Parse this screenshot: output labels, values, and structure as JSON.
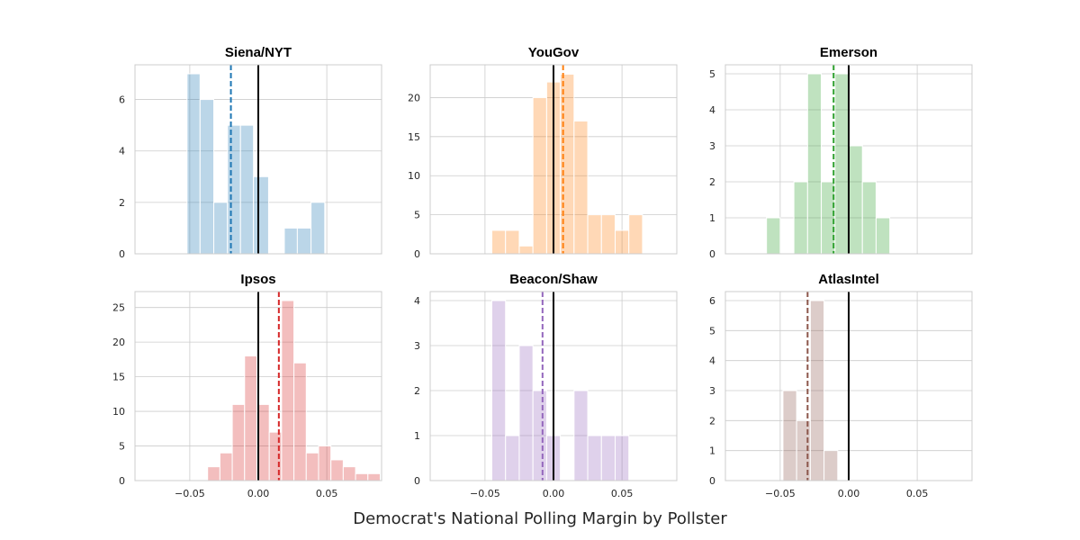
{
  "figure_title": "Democrat's National Polling Margin by Pollster",
  "chart_data": [
    {
      "type": "bar",
      "title": "Siena/NYT",
      "color": "#1f77b4",
      "bar_alpha": 0.3,
      "bins": [
        {
          "x0": -0.052,
          "x1": -0.0425,
          "count": 7
        },
        {
          "x0": -0.0425,
          "x1": -0.0325,
          "count": 6
        },
        {
          "x0": -0.0325,
          "x1": -0.0225,
          "count": 2
        },
        {
          "x0": -0.0225,
          "x1": -0.013,
          "count": 5
        },
        {
          "x0": -0.013,
          "x1": -0.0035,
          "count": 5
        },
        {
          "x0": -0.0035,
          "x1": 0.0075,
          "count": 3
        },
        {
          "x0": 0.019,
          "x1": 0.0285,
          "count": 1
        },
        {
          "x0": 0.0285,
          "x1": 0.0385,
          "count": 1
        },
        {
          "x0": 0.0385,
          "x1": 0.0485,
          "count": 2
        }
      ],
      "mean": -0.02,
      "reference": 0,
      "xlim": [
        -0.09,
        0.09
      ],
      "ylim": [
        0,
        7.35
      ],
      "yticks": [
        "0",
        "2",
        "4",
        "6"
      ],
      "ytick_values": [
        0,
        2,
        4,
        6
      ]
    },
    {
      "type": "bar",
      "title": "YouGov",
      "color": "#ff7f0e",
      "bar_alpha": 0.3,
      "bins": [
        {
          "x0": -0.045,
          "x1": -0.035,
          "count": 3
        },
        {
          "x0": -0.035,
          "x1": -0.025,
          "count": 3
        },
        {
          "x0": -0.025,
          "x1": -0.015,
          "count": 1
        },
        {
          "x0": -0.015,
          "x1": -0.005,
          "count": 20
        },
        {
          "x0": -0.005,
          "x1": 0.005,
          "count": 22
        },
        {
          "x0": 0.005,
          "x1": 0.015,
          "count": 23
        },
        {
          "x0": 0.015,
          "x1": 0.025,
          "count": 17
        },
        {
          "x0": 0.025,
          "x1": 0.035,
          "count": 5
        },
        {
          "x0": 0.035,
          "x1": 0.045,
          "count": 5
        },
        {
          "x0": 0.045,
          "x1": 0.055,
          "count": 3
        },
        {
          "x0": 0.055,
          "x1": 0.065,
          "count": 5
        }
      ],
      "mean": 0.007,
      "reference": 0,
      "xlim": [
        -0.09,
        0.09
      ],
      "ylim": [
        0,
        24.2
      ],
      "yticks": [
        "0",
        "5",
        "10",
        "15",
        "20"
      ],
      "ytick_values": [
        0,
        5,
        10,
        15,
        20
      ]
    },
    {
      "type": "bar",
      "title": "Emerson",
      "color": "#2ca02c",
      "bar_alpha": 0.3,
      "bins": [
        {
          "x0": -0.06,
          "x1": -0.05,
          "count": 1
        },
        {
          "x0": -0.05,
          "x1": -0.04,
          "count": 0
        },
        {
          "x0": -0.04,
          "x1": -0.03,
          "count": 2
        },
        {
          "x0": -0.03,
          "x1": -0.02,
          "count": 5
        },
        {
          "x0": -0.02,
          "x1": -0.01,
          "count": 2
        },
        {
          "x0": -0.01,
          "x1": 0.0,
          "count": 5
        },
        {
          "x0": 0.0,
          "x1": 0.01,
          "count": 3
        },
        {
          "x0": 0.01,
          "x1": 0.02,
          "count": 2
        },
        {
          "x0": 0.02,
          "x1": 0.03,
          "count": 1
        }
      ],
      "mean": -0.011,
      "reference": 0,
      "xlim": [
        -0.09,
        0.09
      ],
      "ylim": [
        0,
        5.25
      ],
      "yticks": [
        "0",
        "1",
        "2",
        "3",
        "4",
        "5"
      ],
      "ytick_values": [
        0,
        1,
        2,
        3,
        4,
        5
      ]
    },
    {
      "type": "bar",
      "title": "Ipsos",
      "color": "#d62728",
      "bar_alpha": 0.3,
      "bins": [
        {
          "x0": -0.037,
          "x1": -0.028,
          "count": 2
        },
        {
          "x0": -0.028,
          "x1": -0.019,
          "count": 4
        },
        {
          "x0": -0.019,
          "x1": -0.01,
          "count": 11
        },
        {
          "x0": -0.01,
          "x1": -0.001,
          "count": 18
        },
        {
          "x0": -0.001,
          "x1": 0.008,
          "count": 11
        },
        {
          "x0": 0.008,
          "x1": 0.017,
          "count": 7
        },
        {
          "x0": 0.017,
          "x1": 0.026,
          "count": 26
        },
        {
          "x0": 0.026,
          "x1": 0.035,
          "count": 17
        },
        {
          "x0": 0.035,
          "x1": 0.044,
          "count": 4
        },
        {
          "x0": 0.044,
          "x1": 0.053,
          "count": 5
        },
        {
          "x0": 0.053,
          "x1": 0.062,
          "count": 3
        },
        {
          "x0": 0.062,
          "x1": 0.071,
          "count": 2
        },
        {
          "x0": 0.071,
          "x1": 0.08,
          "count": 1
        },
        {
          "x0": 0.08,
          "x1": 0.089,
          "count": 1
        }
      ],
      "mean": 0.015,
      "reference": 0,
      "xlim": [
        -0.09,
        0.09
      ],
      "ylim": [
        0,
        27.3
      ],
      "yticks": [
        "0",
        "5",
        "10",
        "15",
        "20",
        "25"
      ],
      "ytick_values": [
        0,
        5,
        10,
        15,
        20,
        25
      ],
      "xticks": [
        "−0.05",
        "0.00",
        "0.05"
      ],
      "xtick_values": [
        -0.05,
        0,
        0.05
      ]
    },
    {
      "type": "bar",
      "title": "Beacon/Shaw",
      "color": "#9467bd",
      "bar_alpha": 0.3,
      "bins": [
        {
          "x0": -0.045,
          "x1": -0.035,
          "count": 4
        },
        {
          "x0": -0.035,
          "x1": -0.025,
          "count": 1
        },
        {
          "x0": -0.025,
          "x1": -0.015,
          "count": 3
        },
        {
          "x0": -0.015,
          "x1": -0.005,
          "count": 2
        },
        {
          "x0": -0.005,
          "x1": 0.005,
          "count": 1
        },
        {
          "x0": 0.005,
          "x1": 0.015,
          "count": 0
        },
        {
          "x0": 0.015,
          "x1": 0.025,
          "count": 2
        },
        {
          "x0": 0.025,
          "x1": 0.035,
          "count": 1
        },
        {
          "x0": 0.035,
          "x1": 0.045,
          "count": 1
        },
        {
          "x0": 0.045,
          "x1": 0.055,
          "count": 1
        }
      ],
      "mean": -0.008,
      "reference": 0,
      "xlim": [
        -0.09,
        0.09
      ],
      "ylim": [
        0,
        4.2
      ],
      "yticks": [
        "0",
        "1",
        "2",
        "3",
        "4"
      ],
      "ytick_values": [
        0,
        1,
        2,
        3,
        4
      ],
      "xticks": [
        "−0.05",
        "0.00",
        "0.05"
      ],
      "xtick_values": [
        -0.05,
        0,
        0.05
      ]
    },
    {
      "type": "bar",
      "title": "AtlasIntel",
      "color": "#8c564b",
      "bar_alpha": 0.3,
      "bins": [
        {
          "x0": -0.048,
          "x1": -0.038,
          "count": 3
        },
        {
          "x0": -0.038,
          "x1": -0.028,
          "count": 2
        },
        {
          "x0": -0.028,
          "x1": -0.018,
          "count": 6
        },
        {
          "x0": -0.018,
          "x1": -0.008,
          "count": 1
        }
      ],
      "mean": -0.03,
      "reference": 0,
      "xlim": [
        -0.09,
        0.09
      ],
      "ylim": [
        0,
        6.3
      ],
      "yticks": [
        "0",
        "1",
        "2",
        "3",
        "4",
        "5",
        "6"
      ],
      "ytick_values": [
        0,
        1,
        2,
        3,
        4,
        5,
        6
      ],
      "xticks": [
        "−0.05",
        "0.00",
        "0.05"
      ],
      "xtick_values": [
        -0.05,
        0,
        0.05
      ]
    }
  ]
}
